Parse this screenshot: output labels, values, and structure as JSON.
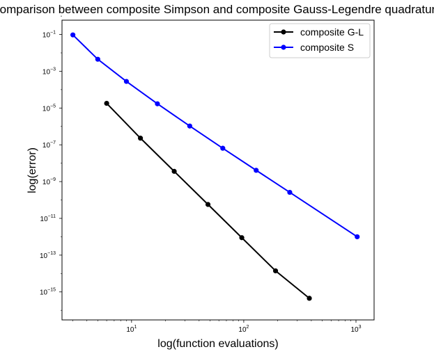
{
  "chart_data": {
    "type": "line",
    "title": "Comparison between composite Simpson and composite Gauss-Legendre quadrature",
    "xlabel": "log(function evaluations)",
    "ylabel": "log(error)",
    "xscale": "log",
    "yscale": "log",
    "xlim": [
      2.4,
      1450
    ],
    "ylim": [
      3e-17,
      0.6
    ],
    "x_ticks": [
      {
        "value": 10,
        "base": "10",
        "exp": "1"
      },
      {
        "value": 100,
        "base": "10",
        "exp": "2"
      },
      {
        "value": 1000,
        "base": "10",
        "exp": "3"
      }
    ],
    "y_ticks": [
      {
        "value": 0.1,
        "base": "10",
        "exp": "−1"
      },
      {
        "value": 0.001,
        "base": "10",
        "exp": "−3"
      },
      {
        "value": 1e-05,
        "base": "10",
        "exp": "−5"
      },
      {
        "value": 1e-07,
        "base": "10",
        "exp": "−7"
      },
      {
        "value": 1e-09,
        "base": "10",
        "exp": "−9"
      },
      {
        "value": 1e-11,
        "base": "10",
        "exp": "−11"
      },
      {
        "value": 1e-13,
        "base": "10",
        "exp": "−13"
      },
      {
        "value": 1e-15,
        "base": "10",
        "exp": "−15"
      }
    ],
    "grid": false,
    "legend_position": "top-right",
    "series": [
      {
        "name": "composite G-L",
        "color": "#000000",
        "x": [
          6,
          12,
          24,
          48,
          96,
          192,
          384
        ],
        "y": [
          1.8e-05,
          2.3e-07,
          3.6e-09,
          5.7e-11,
          8.9e-13,
          1.4e-14,
          4.5e-16
        ]
      },
      {
        "name": "composite S",
        "color": "#0000ff",
        "x": [
          3,
          5,
          9,
          17,
          33,
          65,
          129,
          257,
          1025
        ],
        "y": [
          0.095,
          0.0045,
          0.00028,
          1.7e-05,
          1.05e-06,
          6.5e-08,
          4.1e-09,
          2.6e-10,
          1e-12
        ]
      }
    ]
  }
}
